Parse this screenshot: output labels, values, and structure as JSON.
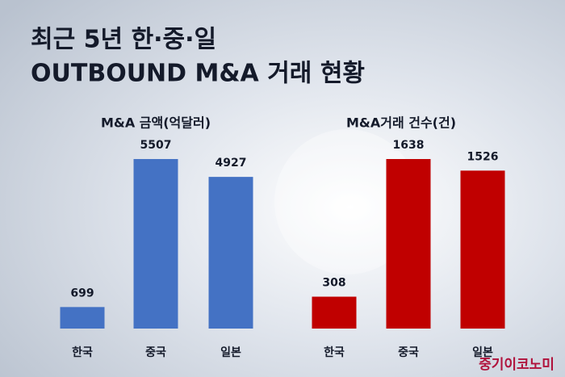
{
  "title": [
    "최근 5년 한·중·일",
    "OUTBOUND M&A 거래 현황"
  ],
  "source": "중기이코노미",
  "chart_data": [
    {
      "type": "bar",
      "title": "M&A 금액(억달러)",
      "categories": [
        "한국",
        "중국",
        "일본"
      ],
      "values": [
        699,
        5507,
        4927
      ],
      "color": "#4472c4"
    },
    {
      "type": "bar",
      "title": "M&A거래 건수(건)",
      "categories": [
        "한국",
        "중국",
        "일본"
      ],
      "values": [
        308,
        1638,
        1526
      ],
      "color": "#c00000"
    }
  ]
}
